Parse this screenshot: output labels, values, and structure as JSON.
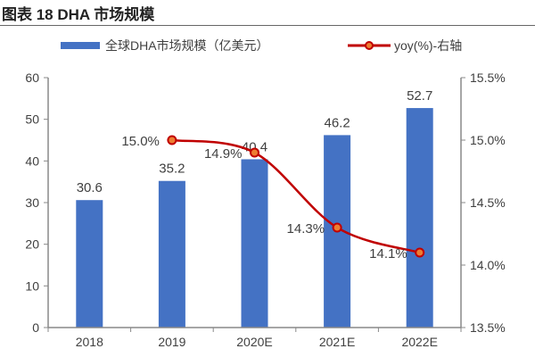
{
  "header": {
    "title": "图表 18 DHA 市场规模"
  },
  "chart_data": {
    "type": "bar+line",
    "categories": [
      "2018",
      "2019",
      "2020E",
      "2021E",
      "2022E"
    ],
    "series": [
      {
        "name": "全球DHA市场规模（亿美元）",
        "type": "bar",
        "axis": "left",
        "color": "#4472C4",
        "values": [
          30.6,
          35.2,
          40.4,
          46.2,
          52.7
        ],
        "labels": [
          "30.6",
          "35.2",
          "40.4",
          "46.2",
          "52.7"
        ]
      },
      {
        "name": "yoy(%)-右轴",
        "type": "line",
        "axis": "right",
        "color": "#C00000",
        "marker_fill": "#ED7D31",
        "values": [
          null,
          15.0,
          14.9,
          14.3,
          14.1
        ],
        "labels": [
          null,
          "15.0%",
          "14.9%",
          "14.3%",
          "14.1%"
        ]
      }
    ],
    "left_axis": {
      "ylim": [
        0,
        60
      ],
      "ticks": [
        "0",
        "10",
        "20",
        "30",
        "40",
        "50",
        "60"
      ]
    },
    "right_axis": {
      "ylim": [
        13.5,
        15.5
      ],
      "ticks": [
        "13.5%",
        "14.0%",
        "14.5%",
        "15.0%",
        "15.5%"
      ]
    },
    "legend": "top",
    "grid": false
  }
}
